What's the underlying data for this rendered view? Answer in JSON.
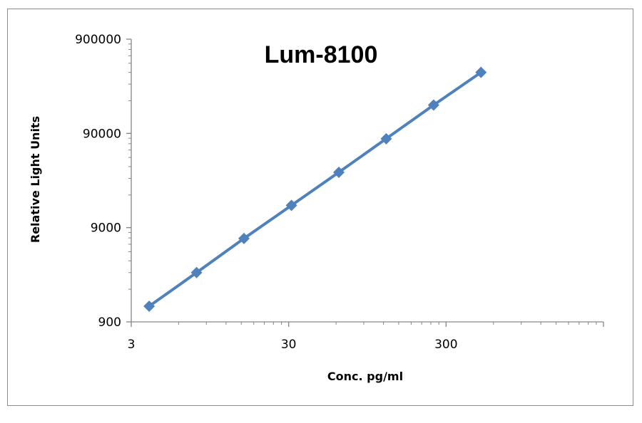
{
  "chart_data": {
    "type": "scatter",
    "title": "Lum-8100",
    "xlabel": "Conc. pg/ml",
    "ylabel": "Relative Light Units",
    "x_scale": "log",
    "y_scale": "log",
    "xlim": [
      3,
      3000
    ],
    "ylim": [
      900,
      900000
    ],
    "x_ticks": [
      3,
      30,
      300
    ],
    "y_ticks": [
      900,
      9000,
      90000,
      900000
    ],
    "x_tick_labels": [
      "3",
      "30",
      "300"
    ],
    "y_tick_labels": [
      "900",
      "9000",
      "90000",
      "900000"
    ],
    "grid": false,
    "legend": "none",
    "series": [
      {
        "x": [
          3.9,
          7.8,
          15.6,
          31.25,
          62.5,
          125,
          250,
          500
        ],
        "y": [
          1320,
          3000,
          6900,
          15500,
          34800,
          79000,
          180000,
          400000
        ]
      }
    ],
    "colors": {
      "series": "#4f81bd",
      "axis": "#868686"
    }
  }
}
